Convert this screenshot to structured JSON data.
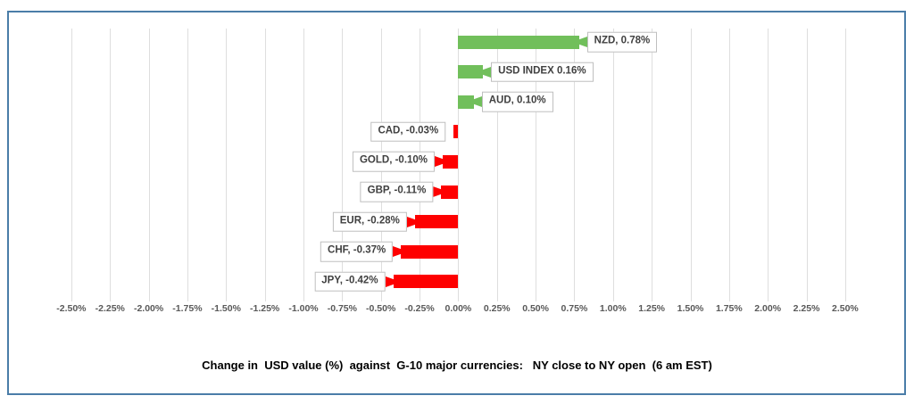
{
  "chart_data": {
    "type": "bar",
    "orientation": "horizontal",
    "title": "Change in  USD value (%)  against  G-10 major currencies:   NY close to NY open  (6 am EST)",
    "categories": [
      "NZD",
      "USD INDEX",
      "AUD",
      "CAD",
      "GOLD",
      "GBP",
      "EUR",
      "CHF",
      "JPY"
    ],
    "values": [
      0.78,
      0.16,
      0.1,
      -0.03,
      -0.1,
      -0.11,
      -0.28,
      -0.37,
      -0.42
    ],
    "data_labels": [
      "NZD, 0.78%",
      "USD INDEX 0.16%",
      "AUD, 0.10%",
      "CAD, -0.03%",
      "GOLD, -0.10%",
      "GBP, -0.11%",
      "EUR, -0.28%",
      "CHF, -0.37%",
      "JPY, -0.42%"
    ],
    "xlim": [
      -2.5,
      2.5
    ],
    "tick_step": 0.25,
    "x_tick_labels": [
      "-2.50%",
      "-2.25%",
      "-2.00%",
      "-1.75%",
      "-1.50%",
      "-1.25%",
      "-1.00%",
      "-0.75%",
      "-0.50%",
      "-0.25%",
      "0.00%",
      "0.25%",
      "0.50%",
      "0.75%",
      "1.00%",
      "1.25%",
      "1.50%",
      "1.75%",
      "2.00%",
      "2.25%",
      "2.50%"
    ],
    "grid": true,
    "legend": false,
    "colors": {
      "positive_bar": "#71BF5B",
      "negative_bar": "#FE0000",
      "gridline": "#DEDEDE",
      "tick_text": "#595959",
      "callout_border": "#BFBFBF",
      "callout_text": "#404040",
      "frame_border": "#4A7DA8",
      "title_text": "#000000"
    }
  }
}
